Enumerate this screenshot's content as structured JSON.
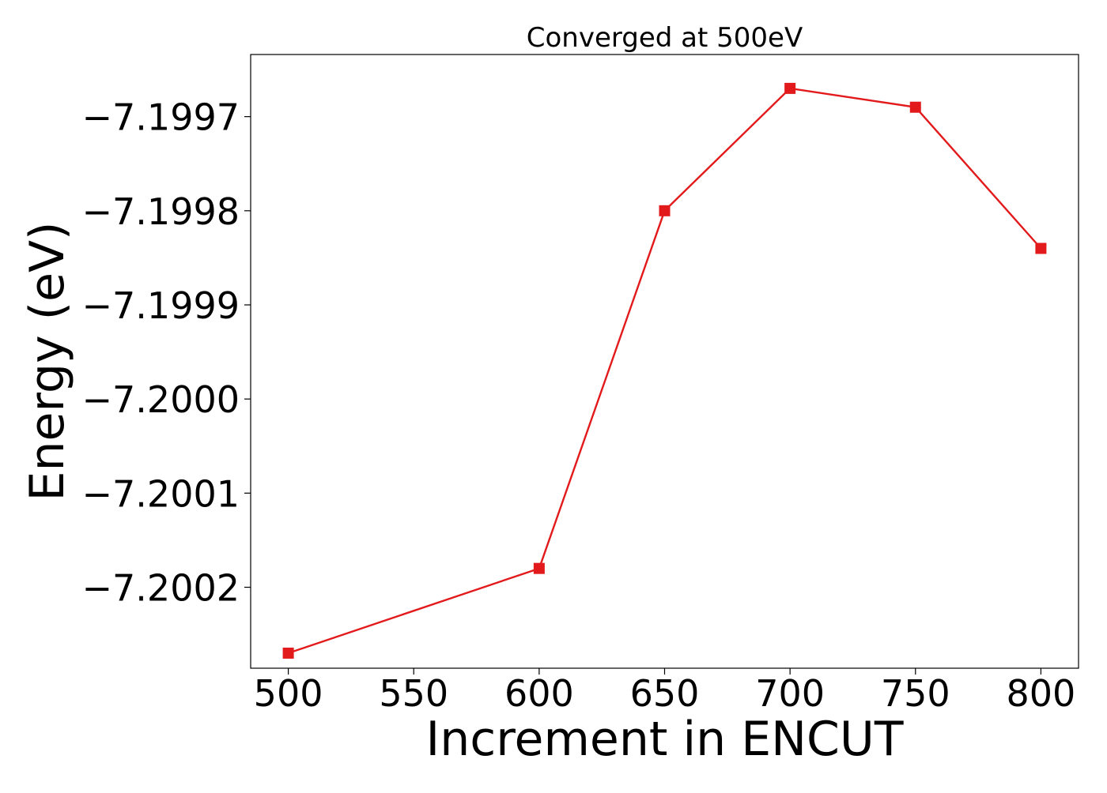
{
  "chart_data": {
    "type": "line",
    "title": "Converged at 500eV",
    "xlabel": "Increment in ENCUT",
    "ylabel": "Energy (eV)",
    "x": [
      500,
      600,
      650,
      700,
      750,
      800
    ],
    "series": [
      {
        "values": [
          -7.20027,
          -7.20018,
          -7.1998,
          -7.19967,
          -7.19969,
          -7.19984
        ],
        "color": "#e31a1c",
        "marker": "square"
      }
    ],
    "xticks": [
      500,
      550,
      600,
      650,
      700,
      750,
      800
    ],
    "xtick_labels": [
      "500",
      "550",
      "600",
      "650",
      "700",
      "750",
      "800"
    ],
    "yticks": [
      -7.1997,
      -7.1998,
      -7.1999,
      -7.2,
      -7.2001,
      -7.2002
    ],
    "ytick_labels": [
      "−7.1997",
      "−7.1998",
      "−7.1999",
      "−7.2000",
      "−7.2001",
      "−7.2002"
    ],
    "xlim": [
      485,
      815
    ],
    "ylim": [
      -7.200286,
      -7.199634
    ],
    "grid": false,
    "legend": false
  }
}
